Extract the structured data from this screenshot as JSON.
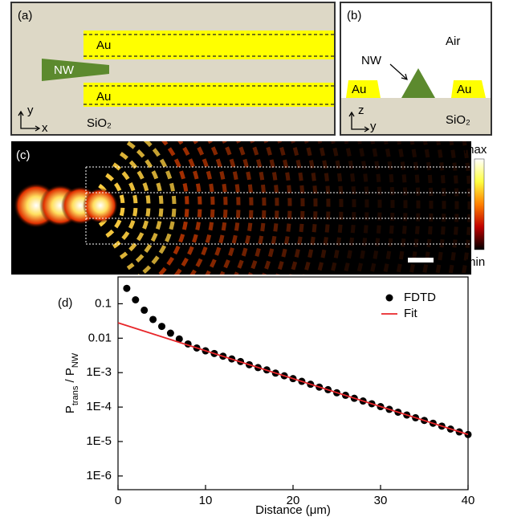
{
  "panel_a": {
    "label": "(a)",
    "au_top": "Au",
    "au_bottom": "Au",
    "nanowire": "NW",
    "axis_y": "y",
    "axis_x": "x",
    "substrate": "SiO₂"
  },
  "panel_b": {
    "label": "(b)",
    "medium": "Air",
    "nanowire": "NW",
    "au_left": "Au",
    "au_right": "Au",
    "axis_z": "z",
    "axis_y": "y",
    "substrate": "SiO₂"
  },
  "panel_c": {
    "label": "(c)",
    "colorbar_max": "max",
    "colorbar_min": "min"
  },
  "chart_data": {
    "type": "scatter",
    "panel_label": "(d)",
    "xlabel": "Distance (μm)",
    "ylabel": [
      "P",
      "trans",
      " / P",
      "NW"
    ],
    "log_y": true,
    "legend": "upper right",
    "xlim": [
      0,
      40
    ],
    "xticks": [
      0,
      10,
      20,
      30,
      40
    ],
    "ylim": [
      4e-07,
      0.6
    ],
    "yticks": [
      0.1,
      0.01,
      {
        "value": 0.001,
        "label": "1E-3"
      },
      {
        "value": 0.0001,
        "label": "1E-4"
      },
      {
        "value": 1e-05,
        "label": "1E-5"
      },
      {
        "value": 1e-06,
        "label": "1E-6"
      }
    ],
    "series": [
      {
        "name": "FDTD",
        "type": "scatter",
        "color": "#000000",
        "x": [
          1,
          2,
          3,
          4,
          5,
          6,
          7,
          8,
          9,
          10,
          11,
          12,
          13,
          14,
          15,
          16,
          17,
          18,
          19,
          20,
          21,
          22,
          23,
          24,
          25,
          26,
          27,
          28,
          29,
          30,
          31,
          32,
          33,
          34,
          35,
          36,
          37,
          38,
          39,
          40
        ],
        "values": [
          0.28,
          0.13,
          0.065,
          0.035,
          0.022,
          0.014,
          0.0095,
          0.0068,
          0.0052,
          0.0043,
          0.0036,
          0.003,
          0.0025,
          0.0021,
          0.0017,
          0.0014,
          0.0012,
          0.00097,
          0.00081,
          0.00067,
          0.00056,
          0.00046,
          0.00038,
          0.00032,
          0.00026,
          0.00022,
          0.00018,
          0.00015,
          0.000125,
          0.000103,
          8.6e-05,
          7.1e-05,
          5.9e-05,
          4.9e-05,
          4.1e-05,
          3.4e-05,
          2.8e-05,
          2.3e-05,
          1.9e-05,
          1.6e-05
        ]
      },
      {
        "name": "Fit",
        "type": "line",
        "color": "#e8262a",
        "x": [
          0,
          40
        ],
        "values": [
          0.028,
          1.6e-05
        ]
      }
    ]
  }
}
